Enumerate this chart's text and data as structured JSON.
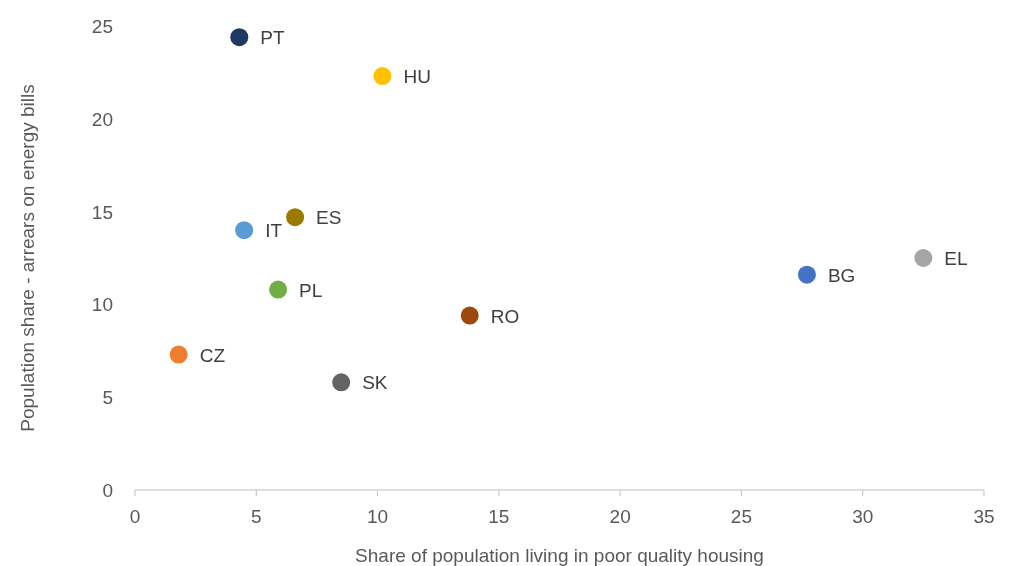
{
  "chart_data": {
    "type": "scatter",
    "xlabel": "Share of population living in poor quality housing",
    "ylabel": "Population share - arrears on energy bills",
    "xlim": [
      0,
      35
    ],
    "ylim": [
      0,
      25
    ],
    "xticks": [
      0,
      5,
      10,
      15,
      20,
      25,
      30,
      35
    ],
    "yticks": [
      0,
      5,
      10,
      15,
      20,
      25
    ],
    "grid": false,
    "marker": "circle",
    "series": [
      {
        "name": "PT",
        "color": "#1f3864",
        "x": [
          4.3
        ],
        "values": [
          24.4
        ]
      },
      {
        "name": "HU",
        "color": "#ffc000",
        "x": [
          10.2
        ],
        "values": [
          22.3
        ]
      },
      {
        "name": "ES",
        "color": "#9c7a00",
        "x": [
          6.6
        ],
        "values": [
          14.7
        ]
      },
      {
        "name": "IT",
        "color": "#5b9bd5",
        "x": [
          4.5
        ],
        "values": [
          14.0
        ]
      },
      {
        "name": "PL",
        "color": "#70ad47",
        "x": [
          5.9
        ],
        "values": [
          10.8
        ]
      },
      {
        "name": "CZ",
        "color": "#ed7d31",
        "x": [
          1.8
        ],
        "values": [
          7.3
        ]
      },
      {
        "name": "SK",
        "color": "#636363",
        "x": [
          8.5
        ],
        "values": [
          5.8
        ]
      },
      {
        "name": "RO",
        "color": "#9e480e",
        "x": [
          13.8
        ],
        "values": [
          9.4
        ]
      },
      {
        "name": "BG",
        "color": "#4472c4",
        "x": [
          27.7
        ],
        "values": [
          11.6
        ]
      },
      {
        "name": "EL",
        "color": "#a5a5a5",
        "x": [
          32.5
        ],
        "values": [
          12.5
        ]
      }
    ]
  }
}
